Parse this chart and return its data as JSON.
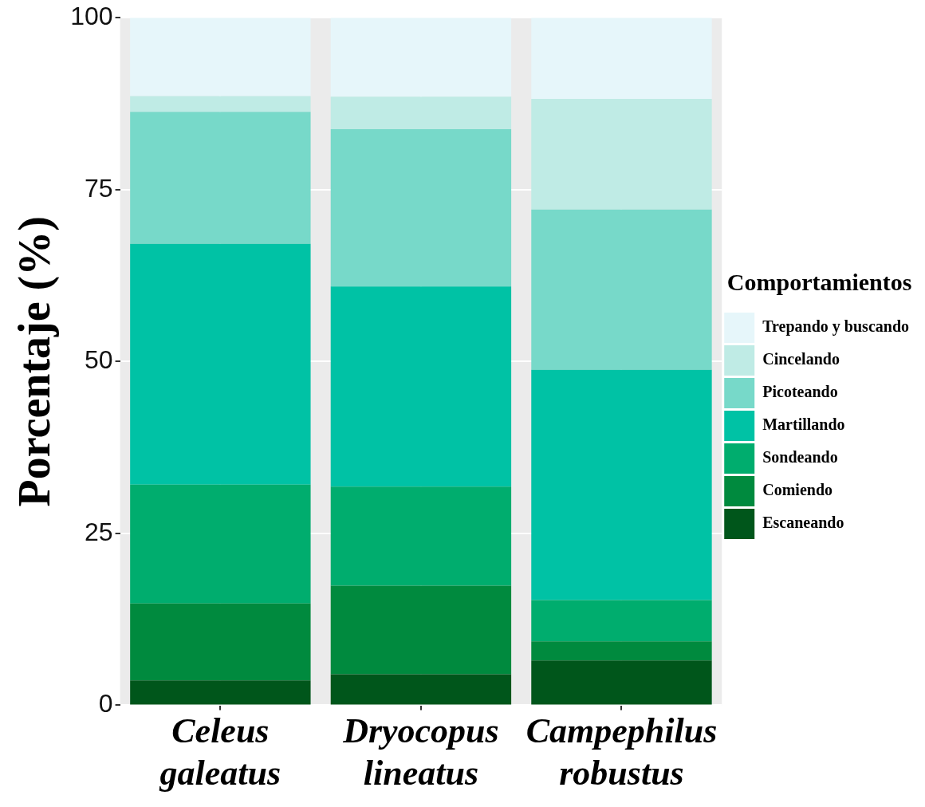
{
  "chart_data": {
    "type": "bar",
    "stacked": true,
    "ylabel": "Porcentaje (%)",
    "legend_title": "Comportamientos",
    "legend": "right",
    "grid": true,
    "categories": [
      "Celeus galeatus",
      "Dryocopus lineatus",
      "Campephilus robustus"
    ],
    "ylim": [
      0,
      100
    ],
    "yticks": [
      0,
      25,
      50,
      75,
      100
    ],
    "series": [
      {
        "name": "Escaneando",
        "color": "#00561b",
        "values": [
          3.6,
          4.5,
          6.5
        ]
      },
      {
        "name": "Comiendo",
        "color": "#008a3e",
        "values": [
          11.2,
          12.9,
          2.8
        ]
      },
      {
        "name": "Sondeando",
        "color": "#00ad6e",
        "values": [
          17.3,
          14.4,
          6.0
        ]
      },
      {
        "name": "Martillando",
        "color": "#00c2a5",
        "values": [
          35.0,
          29.1,
          33.5
        ]
      },
      {
        "name": "Picoteando",
        "color": "#77d9c9",
        "values": [
          19.2,
          22.9,
          23.3
        ]
      },
      {
        "name": "Cincelando",
        "color": "#bfebe5",
        "values": [
          2.3,
          4.7,
          16.1
        ]
      },
      {
        "name": "Trepando y buscando",
        "color": "#e6f6fa",
        "values": [
          11.4,
          11.5,
          11.8
        ]
      }
    ]
  }
}
